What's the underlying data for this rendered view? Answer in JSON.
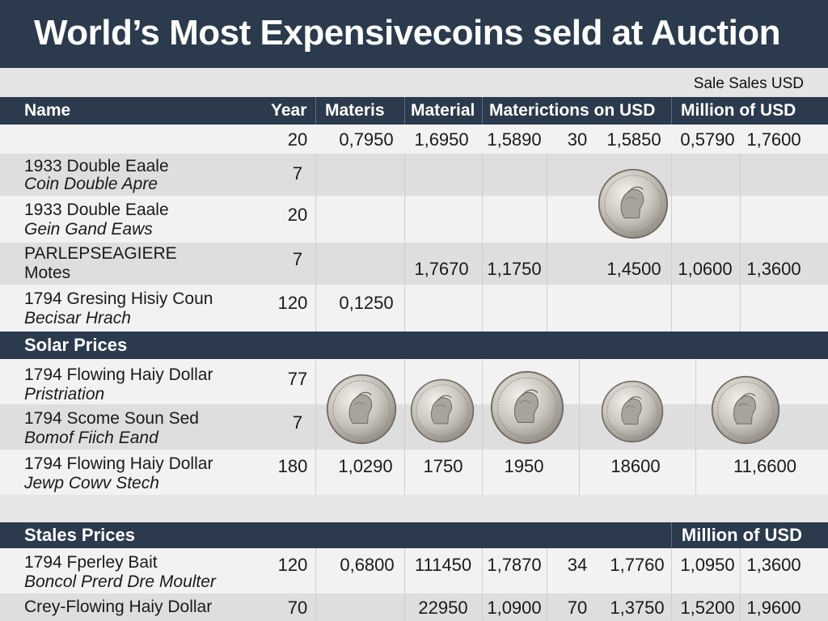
{
  "title": "World’s Most Expensivecoins seld at Auction",
  "note": "Sale Sales USD",
  "columns": [
    "Name",
    "Year",
    "Materis",
    "Material",
    "Matericti­ons on USD",
    "Million of USD"
  ],
  "top_row": {
    "year": "20",
    "values": [
      "0,7950",
      "1,6950",
      "1,5890",
      "30",
      "1,5850",
      "0,5790",
      "1,7600"
    ]
  },
  "rows_a": [
    {
      "name": "1933 Double Eaale",
      "sub": "Coin Double Apre",
      "year": "7",
      "values": []
    },
    {
      "name": "1933 Double Eaale",
      "sub": "Gein Gand Eaws",
      "year": "20",
      "values": []
    },
    {
      "name": "PARLEPSEAGIERE",
      "sub": "Motes",
      "year": "7",
      "values": [
        "1,7670",
        "1,1750",
        "1,4500",
        "1,0600",
        "1,3600"
      ]
    },
    {
      "name": "1794 Gresing Hisiy Coun",
      "sub": "Becisar Hrach",
      "year": "120",
      "values": [
        "0,1250"
      ]
    }
  ],
  "section_solar": "Solar Prices",
  "rows_b": [
    {
      "name": "1794 Flowing Haiy Dollar",
      "sub": "Pristriation",
      "year": "77",
      "values": []
    },
    {
      "name": "1794 Scome Soun Sed",
      "sub": "Bomof Fiich Eand",
      "year": "7",
      "values": []
    },
    {
      "name": "1794 Flowing Haiy Dollar",
      "sub": "Jewp Cowv Stech",
      "year": "180",
      "values": [
        "1,0290",
        "1750",
        "1950",
        "18600",
        "11,6600"
      ]
    }
  ],
  "section_stales": "Stales Prices",
  "section_stales_right": "Million of USD",
  "rows_c": [
    {
      "name": "1794 Fperley Bait",
      "sub": "Boncol Prerd Dre Moulter",
      "year": "120",
      "values": [
        "0,6800",
        "111450",
        "1,7870",
        "34",
        "1,7760",
        "1,0950",
        "1,3600"
      ]
    },
    {
      "name": "Crey-Flowing Haiy Dollar",
      "sub": "",
      "year": "70",
      "values": [
        "22950",
        "1,0900",
        "70",
        "1,3750",
        "1,5200",
        "1,9600"
      ]
    }
  ],
  "icons": [
    "coin-icon"
  ],
  "colors": {
    "header": "#2b3a4d",
    "band": "#2b3a4d",
    "row_light": "#f2f2f2",
    "row_dark": "#dedede"
  }
}
